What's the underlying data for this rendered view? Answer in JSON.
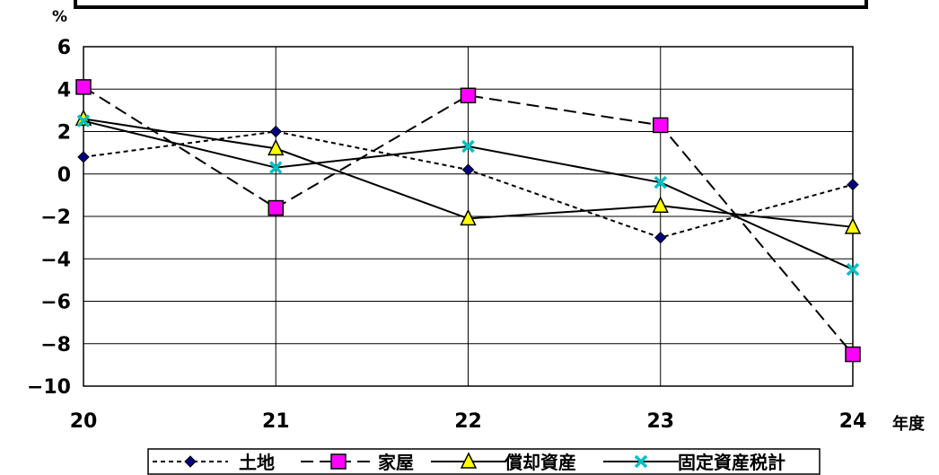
{
  "chart_data": {
    "type": "line",
    "ylabel": "%",
    "xlabel": "年度",
    "categories": [
      "20",
      "21",
      "22",
      "23",
      "24"
    ],
    "ylim": [
      -10,
      6
    ],
    "yticks": [
      "6",
      "4",
      "2",
      "0",
      "−2",
      "−4",
      "−6",
      "−8",
      "−10"
    ],
    "grid": true,
    "legend_position": "bottom",
    "series": [
      {
        "name": "土地",
        "values": [
          0.8,
          2.0,
          0.2,
          -3.0,
          -0.5
        ],
        "dash": "short",
        "marker": "diamond",
        "color": "#000080"
      },
      {
        "name": "家屋",
        "values": [
          4.1,
          -1.6,
          3.7,
          2.3,
          -8.5
        ],
        "dash": "long",
        "marker": "square",
        "color": "#ff00ff"
      },
      {
        "name": "償却資産",
        "values": [
          2.6,
          1.2,
          -2.1,
          -1.5,
          -2.5
        ],
        "dash": "solid",
        "marker": "triangle",
        "color": "#ffff00"
      },
      {
        "name": "固定資産税計",
        "values": [
          2.5,
          0.3,
          1.3,
          -0.4,
          -4.5
        ],
        "dash": "solid",
        "marker": "x",
        "color": "#00c0c0"
      }
    ]
  }
}
